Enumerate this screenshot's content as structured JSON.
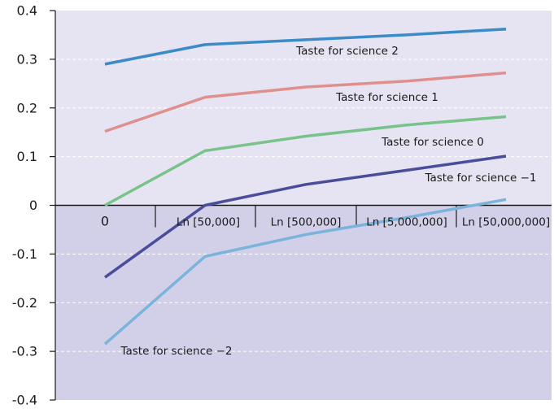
{
  "chart_data": {
    "type": "line",
    "categories": [
      "0",
      "Ln [50,000]",
      "Ln [500,000]",
      "Ln [5,000,000]",
      "Ln [50,000,000]"
    ],
    "ylim": [
      -0.4,
      0.4
    ],
    "yticks": [
      0.4,
      0.3,
      0.2,
      0.1,
      0,
      -0.1,
      -0.2,
      -0.3,
      -0.4
    ],
    "ytick_labels": [
      "0.4",
      "0.3",
      "0.2",
      "0.1",
      "0",
      "-0.1",
      "-0.2",
      "-0.3",
      "-0.4"
    ],
    "grid": true,
    "colors": {
      "background_upper": "#e6e4f2",
      "background_lower": "#d2d0e8",
      "grid": "#ffffff",
      "axis": "#1a1a1a"
    },
    "series": [
      {
        "name": "Taste for science 2",
        "color": "#3a8bc8",
        "values": [
          0.29,
          0.33,
          0.34,
          0.35,
          0.362
        ]
      },
      {
        "name": "Taste for science 1",
        "color": "#e0908c",
        "values": [
          0.152,
          0.222,
          0.243,
          0.255,
          0.272
        ]
      },
      {
        "name": "Taste for science 0",
        "color": "#78c38a",
        "values": [
          0.0,
          0.112,
          0.142,
          0.165,
          0.182
        ]
      },
      {
        "name": "Taste for science −1",
        "color": "#4a4d9a",
        "values": [
          -0.148,
          0.0,
          0.043,
          0.072,
          0.101
        ]
      },
      {
        "name": "Taste for science −2",
        "color": "#7ab3dc",
        "values": [
          -0.285,
          -0.105,
          -0.06,
          -0.025,
          0.012
        ]
      }
    ]
  }
}
